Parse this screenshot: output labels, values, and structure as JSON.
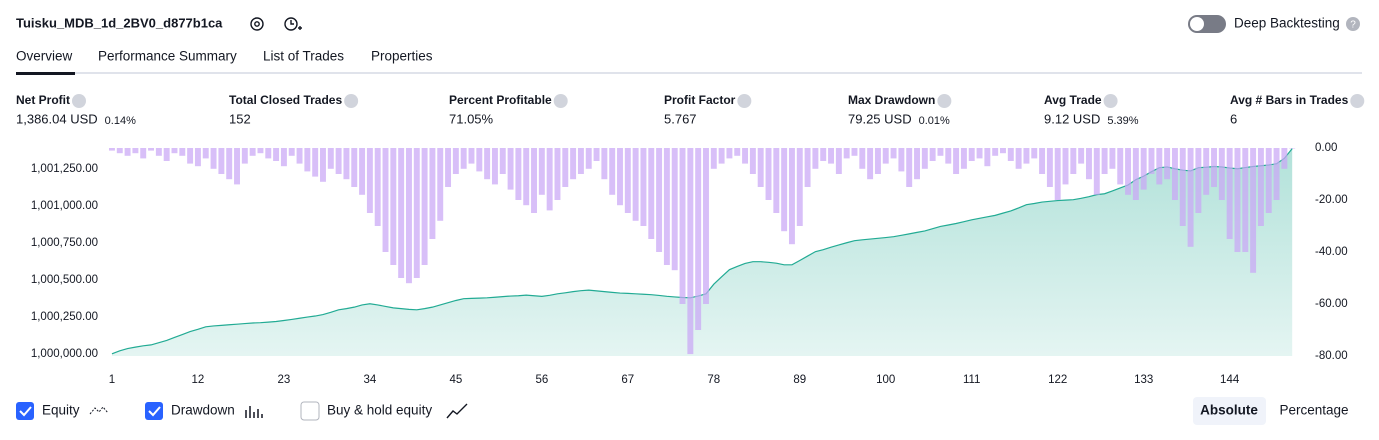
{
  "header": {
    "title": "Tuisku_MDB_1d_2BV0_d877b1ca",
    "toggle_label": "Deep Backtesting"
  },
  "tabs": [
    "Overview",
    "Performance Summary",
    "List of Trades",
    "Properties"
  ],
  "metrics": [
    {
      "label": "Net Profit",
      "value": "1,386.04 USD",
      "sub": "0.14%",
      "tone": "good"
    },
    {
      "label": "Total Closed Trades",
      "value": "152",
      "tone": "neutral"
    },
    {
      "label": "Percent Profitable",
      "value": "71.05%",
      "tone": "good"
    },
    {
      "label": "Profit Factor",
      "value": "5.767",
      "tone": "good"
    },
    {
      "label": "Max Drawdown",
      "value": "79.25 USD",
      "sub": "0.01%",
      "tone": "bad"
    },
    {
      "label": "Avg Trade",
      "value": "9.12 USD",
      "sub": "5.39%",
      "tone": "good"
    },
    {
      "label": "Avg # Bars in Trades",
      "value": "6",
      "tone": "neutral"
    }
  ],
  "chart_data": {
    "type": "combo",
    "x": [
      1,
      2,
      3,
      4,
      5,
      6,
      7,
      8,
      9,
      10,
      11,
      12,
      13,
      14,
      15,
      16,
      17,
      18,
      19,
      20,
      21,
      22,
      23,
      24,
      25,
      26,
      27,
      28,
      29,
      30,
      31,
      32,
      33,
      34,
      35,
      36,
      37,
      38,
      39,
      40,
      41,
      42,
      43,
      44,
      45,
      46,
      47,
      48,
      49,
      50,
      51,
      52,
      53,
      54,
      55,
      56,
      57,
      58,
      59,
      60,
      61,
      62,
      63,
      64,
      65,
      66,
      67,
      68,
      69,
      70,
      71,
      72,
      73,
      74,
      75,
      76,
      77,
      78,
      79,
      80,
      81,
      82,
      83,
      84,
      85,
      86,
      87,
      88,
      89,
      90,
      91,
      92,
      93,
      94,
      95,
      96,
      97,
      98,
      99,
      100,
      101,
      102,
      103,
      104,
      105,
      106,
      107,
      108,
      109,
      110,
      111,
      112,
      113,
      114,
      115,
      116,
      117,
      118,
      119,
      120,
      121,
      122,
      123,
      124,
      125,
      126,
      127,
      128,
      129,
      130,
      131,
      132,
      133,
      134,
      135,
      136,
      137,
      138,
      139,
      140,
      141,
      142,
      143,
      144,
      145,
      146,
      147,
      148,
      149,
      150,
      151,
      152
    ],
    "series": [
      {
        "name": "Equity",
        "type": "area",
        "color": "#22ab94",
        "values": [
          1000000,
          1000020,
          1000035,
          1000045,
          1000054,
          1000060,
          1000075,
          1000090,
          1000110,
          1000130,
          1000150,
          1000165,
          1000182,
          1000188,
          1000192,
          1000196,
          1000200,
          1000204,
          1000208,
          1000210,
          1000214,
          1000218,
          1000225,
          1000232,
          1000240,
          1000248,
          1000255,
          1000265,
          1000280,
          1000297,
          1000305,
          1000315,
          1000330,
          1000338,
          1000330,
          1000320,
          1000310,
          1000305,
          1000300,
          1000297,
          1000305,
          1000315,
          1000330,
          1000345,
          1000360,
          1000372,
          1000374,
          1000376,
          1000378,
          1000382,
          1000386,
          1000390,
          1000392,
          1000396,
          1000392,
          1000388,
          1000395,
          1000405,
          1000412,
          1000420,
          1000426,
          1000430,
          1000425,
          1000420,
          1000415,
          1000410,
          1000408,
          1000405,
          1000402,
          1000399,
          1000394,
          1000388,
          1000384,
          1000380,
          1000378,
          1000390,
          1000405,
          1000470,
          1000520,
          1000568,
          1000590,
          1000610,
          1000622,
          1000622,
          1000618,
          1000612,
          1000601,
          1000601,
          1000630,
          1000660,
          1000690,
          1000703,
          1000720,
          1000735,
          1000750,
          1000764,
          1000770,
          1000775,
          1000780,
          1000785,
          1000791,
          1000800,
          1000810,
          1000820,
          1000830,
          1000845,
          1000860,
          1000870,
          1000880,
          1000892,
          1000905,
          1000915,
          1000925,
          1000935,
          1000950,
          1000965,
          1000985,
          1001007,
          1001015,
          1001025,
          1001030,
          1001035,
          1001038,
          1001041,
          1001050,
          1001061,
          1001075,
          1001081,
          1001100,
          1001120,
          1001140,
          1001176,
          1001200,
          1001230,
          1001257,
          1001262,
          1001250,
          1001240,
          1001235,
          1001257,
          1001260,
          1001265,
          1001262,
          1001255,
          1001250,
          1001258,
          1001265,
          1001270,
          1001275,
          1001284,
          1001320,
          1001386.04
        ]
      },
      {
        "name": "Drawdown",
        "type": "bar",
        "axis": "y2",
        "color": "#c9a6f5",
        "values": [
          -1,
          -2,
          -3,
          -2,
          -4,
          -1,
          -3,
          -5,
          -2,
          -3,
          -6,
          -7,
          -4,
          -8,
          -10,
          -12,
          -14,
          -6,
          -3,
          -2,
          -4,
          -5,
          -7,
          -3,
          -6,
          -9,
          -11,
          -13,
          -8,
          -10,
          -12,
          -15,
          -18,
          -25,
          -30,
          -40,
          -45,
          -50,
          -52,
          -50,
          -45,
          -35,
          -28,
          -15,
          -10,
          -8,
          -6,
          -9,
          -12,
          -14,
          -10,
          -16,
          -20,
          -22,
          -25,
          -18,
          -24,
          -20,
          -15,
          -12,
          -10,
          -8,
          -5,
          -12,
          -18,
          -22,
          -25,
          -28,
          -30,
          -35,
          -40,
          -45,
          -47,
          -60,
          -79.25,
          -70,
          -60,
          -8,
          -6,
          -4,
          -3,
          -6,
          -10,
          -15,
          -20,
          -25,
          -32,
          -37,
          -30,
          -15,
          -8,
          -5,
          -6,
          -10,
          -4,
          -3,
          -8,
          -12,
          -10,
          -6,
          -4,
          -9,
          -15,
          -12,
          -8,
          -5,
          -3,
          -6,
          -10,
          -8,
          -5,
          -4,
          -7,
          -3,
          -2,
          -5,
          -8,
          -6,
          -4,
          -10,
          -15,
          -20,
          -14,
          -10,
          -6,
          -12,
          -18,
          -10,
          -8,
          -14,
          -18,
          -20,
          -16,
          -10,
          -14,
          -12,
          -20,
          -30,
          -38,
          -25,
          -18,
          -15,
          -20,
          -35,
          -40,
          -40,
          -48,
          -30,
          -25,
          -20,
          -8,
          0
        ]
      }
    ],
    "xlim": [
      0.75,
      153
    ],
    "xticks": [
      1,
      12,
      23,
      34,
      45,
      56,
      67,
      78,
      89,
      100,
      111,
      122,
      133,
      144
    ],
    "ylim": [
      999985,
      1001390
    ],
    "yticks": [
      {
        "value": 1000000,
        "label": "1,000,000.00"
      },
      {
        "value": 1000250,
        "label": "1,000,250.00"
      },
      {
        "value": 1000500,
        "label": "1,000,500.00"
      },
      {
        "value": 1000750,
        "label": "1,000,750.00"
      },
      {
        "value": 1001000,
        "label": "1,001,000.00"
      },
      {
        "value": 1001250,
        "label": "1,001,250.00"
      }
    ],
    "y2lim": [
      -80,
      0
    ],
    "y2ticks": [
      {
        "value": 0,
        "label": "0.00"
      },
      {
        "value": -20,
        "label": "-20.00"
      },
      {
        "value": -40,
        "label": "-40.00"
      },
      {
        "value": -60,
        "label": "-60.00"
      },
      {
        "value": -80,
        "label": "-80.00"
      }
    ]
  },
  "legend_extra": "Buy & hold equity",
  "scale_buttons": [
    "Absolute",
    "Percentage"
  ]
}
